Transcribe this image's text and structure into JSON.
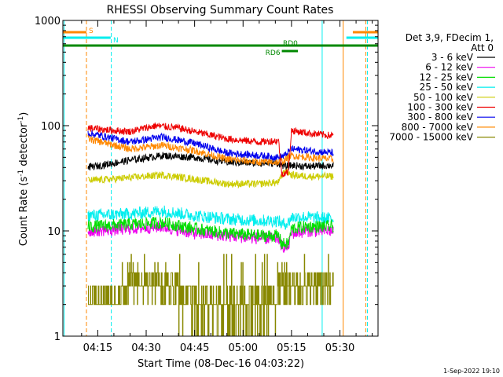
{
  "chart_data": {
    "type": "line",
    "title": "RHESSI Observing Summary Count Rates",
    "xlabel": "Start Time (08-Dec-16 04:03:22)",
    "ylabel_main": "Count Rate (s",
    "ylabel_sup1": "-1",
    "ylabel_mid": " detector",
    "ylabel_sup2": "-1",
    "ylabel_end": ")",
    "yscale": "log",
    "ylim": [
      1,
      1000
    ],
    "xlim_minutes": [
      4.2,
      101.8
    ],
    "y_ticks": [
      {
        "value": 1,
        "label": "1"
      },
      {
        "value": 10,
        "label": "10"
      },
      {
        "value": 100,
        "label": "100"
      },
      {
        "value": 1000,
        "label": "1000"
      }
    ],
    "x_ticks": [
      {
        "minute": 15,
        "label": "04:15"
      },
      {
        "minute": 30,
        "label": "04:30"
      },
      {
        "minute": 45,
        "label": "04:45"
      },
      {
        "minute": 60,
        "label": "05:00"
      },
      {
        "minute": 75,
        "label": "05:15"
      },
      {
        "minute": 90,
        "label": "05:30"
      }
    ],
    "legend": {
      "header_line1": "Det 3,9, FDecim 1,",
      "header_line2": "Att 0",
      "placement": "right"
    },
    "series": [
      {
        "name": "3 - 6 keV",
        "color": "#000000",
        "profile": [
          [
            12,
            40
          ],
          [
            25,
            47
          ],
          [
            35,
            52
          ],
          [
            45,
            50
          ],
          [
            55,
            45
          ],
          [
            65,
            44
          ],
          [
            71,
            44
          ],
          [
            73,
            41
          ],
          [
            75,
            42
          ],
          [
            80,
            41
          ],
          [
            88,
            42
          ]
        ]
      },
      {
        "name": "6 - 12 keV",
        "color": "#ee00ee",
        "profile": [
          [
            12,
            10
          ],
          [
            25,
            10.5
          ],
          [
            35,
            11
          ],
          [
            45,
            9.5
          ],
          [
            55,
            9
          ],
          [
            65,
            8.5
          ],
          [
            71,
            8.5
          ],
          [
            72,
            7.2
          ],
          [
            74,
            7
          ],
          [
            75,
            9.5
          ],
          [
            80,
            10
          ],
          [
            88,
            10
          ]
        ]
      },
      {
        "name": "12 - 25 keV",
        "color": "#00dd00",
        "profile": [
          [
            12,
            11
          ],
          [
            25,
            11.5
          ],
          [
            35,
            12
          ],
          [
            45,
            10.5
          ],
          [
            55,
            9.5
          ],
          [
            65,
            9
          ],
          [
            71,
            9
          ],
          [
            72,
            7.5
          ],
          [
            74,
            7.5
          ],
          [
            75,
            10.5
          ],
          [
            80,
            11
          ],
          [
            88,
            11
          ]
        ]
      },
      {
        "name": "25 - 50 keV",
        "color": "#00eeee",
        "profile": [
          [
            12,
            14
          ],
          [
            25,
            14.5
          ],
          [
            35,
            15.5
          ],
          [
            45,
            14
          ],
          [
            55,
            13
          ],
          [
            65,
            12.5
          ],
          [
            71,
            12.5
          ],
          [
            72,
            11.5
          ],
          [
            74,
            12
          ],
          [
            75,
            13.5
          ],
          [
            80,
            13.5
          ],
          [
            88,
            13
          ]
        ]
      },
      {
        "name": "50 - 100 keV",
        "color": "#cccc00",
        "profile": [
          [
            12,
            30
          ],
          [
            25,
            32
          ],
          [
            35,
            34
          ],
          [
            45,
            31
          ],
          [
            55,
            28
          ],
          [
            65,
            28
          ],
          [
            71,
            29
          ],
          [
            73,
            38
          ],
          [
            75,
            34
          ],
          [
            80,
            33
          ],
          [
            88,
            33
          ]
        ]
      },
      {
        "name": "100 - 300 keV",
        "color": "#ee0000",
        "profile": [
          [
            12,
            95
          ],
          [
            20,
            90
          ],
          [
            25,
            88
          ],
          [
            33,
            100
          ],
          [
            40,
            95
          ],
          [
            47,
            85
          ],
          [
            55,
            75
          ],
          [
            65,
            70
          ],
          [
            71,
            72
          ],
          [
            72,
            35
          ],
          [
            74,
            36
          ],
          [
            75,
            90
          ],
          [
            80,
            85
          ],
          [
            88,
            80
          ]
        ]
      },
      {
        "name": "300 - 800 keV",
        "color": "#0000ee",
        "profile": [
          [
            12,
            85
          ],
          [
            25,
            70
          ],
          [
            35,
            78
          ],
          [
            45,
            68
          ],
          [
            55,
            55
          ],
          [
            65,
            52
          ],
          [
            71,
            50
          ],
          [
            73,
            52
          ],
          [
            75,
            60
          ],
          [
            80,
            58
          ],
          [
            88,
            55
          ]
        ]
      },
      {
        "name": "800 - 7000 keV",
        "color": "#ff8800",
        "profile": [
          [
            12,
            75
          ],
          [
            25,
            60
          ],
          [
            35,
            65
          ],
          [
            45,
            58
          ],
          [
            55,
            48
          ],
          [
            65,
            45
          ],
          [
            71,
            45
          ],
          [
            73,
            47
          ],
          [
            75,
            52
          ],
          [
            80,
            50
          ],
          [
            88,
            48
          ]
        ]
      },
      {
        "name": "7000 - 15000 keV",
        "color": "#888800",
        "profile": []
      }
    ],
    "bars": [
      {
        "label": "S",
        "color": "#ff8800",
        "start_minute": 4.2,
        "end_minute": 11.5,
        "level": "top"
      },
      {
        "label": "",
        "color": "#ff8800",
        "start_minute": 94,
        "end_minute": 101.8,
        "level": "top"
      },
      {
        "label": "N",
        "color": "#00eeee",
        "start_minute": 4.2,
        "end_minute": 19,
        "level": "second"
      },
      {
        "label": "",
        "color": "#00eeee",
        "start_minute": 92,
        "end_minute": 101.8,
        "level": "second"
      },
      {
        "label": "RD0",
        "color": "#008800",
        "start_minute": 4.2,
        "end_minute": 101.8,
        "level": "third"
      },
      {
        "label": "RD6",
        "color": "#008800",
        "start_minute": 72,
        "end_minute": 77,
        "level": "fourth"
      }
    ],
    "vertical_lines": [
      {
        "minute": 4.6,
        "color": "#00eeee",
        "dashed": false
      },
      {
        "minute": 11.5,
        "color": "#ff8800",
        "dashed": true
      },
      {
        "minute": 19.2,
        "color": "#00eeee",
        "dashed": true
      },
      {
        "minute": 84.5,
        "color": "#00eeee",
        "dashed": false
      },
      {
        "minute": 91,
        "color": "#ff8800",
        "dashed": false
      },
      {
        "minute": 98,
        "color": "#ff8800",
        "dashed": true
      },
      {
        "minute": 98.5,
        "color": "#00eeee",
        "dashed": true
      }
    ],
    "data_start_minute": 12,
    "data_end_minute": 88,
    "gap_start_minute": 71.5,
    "gap_end_minute": 74.5,
    "footer_timestamp": "1-Sep-2022 19:10"
  }
}
